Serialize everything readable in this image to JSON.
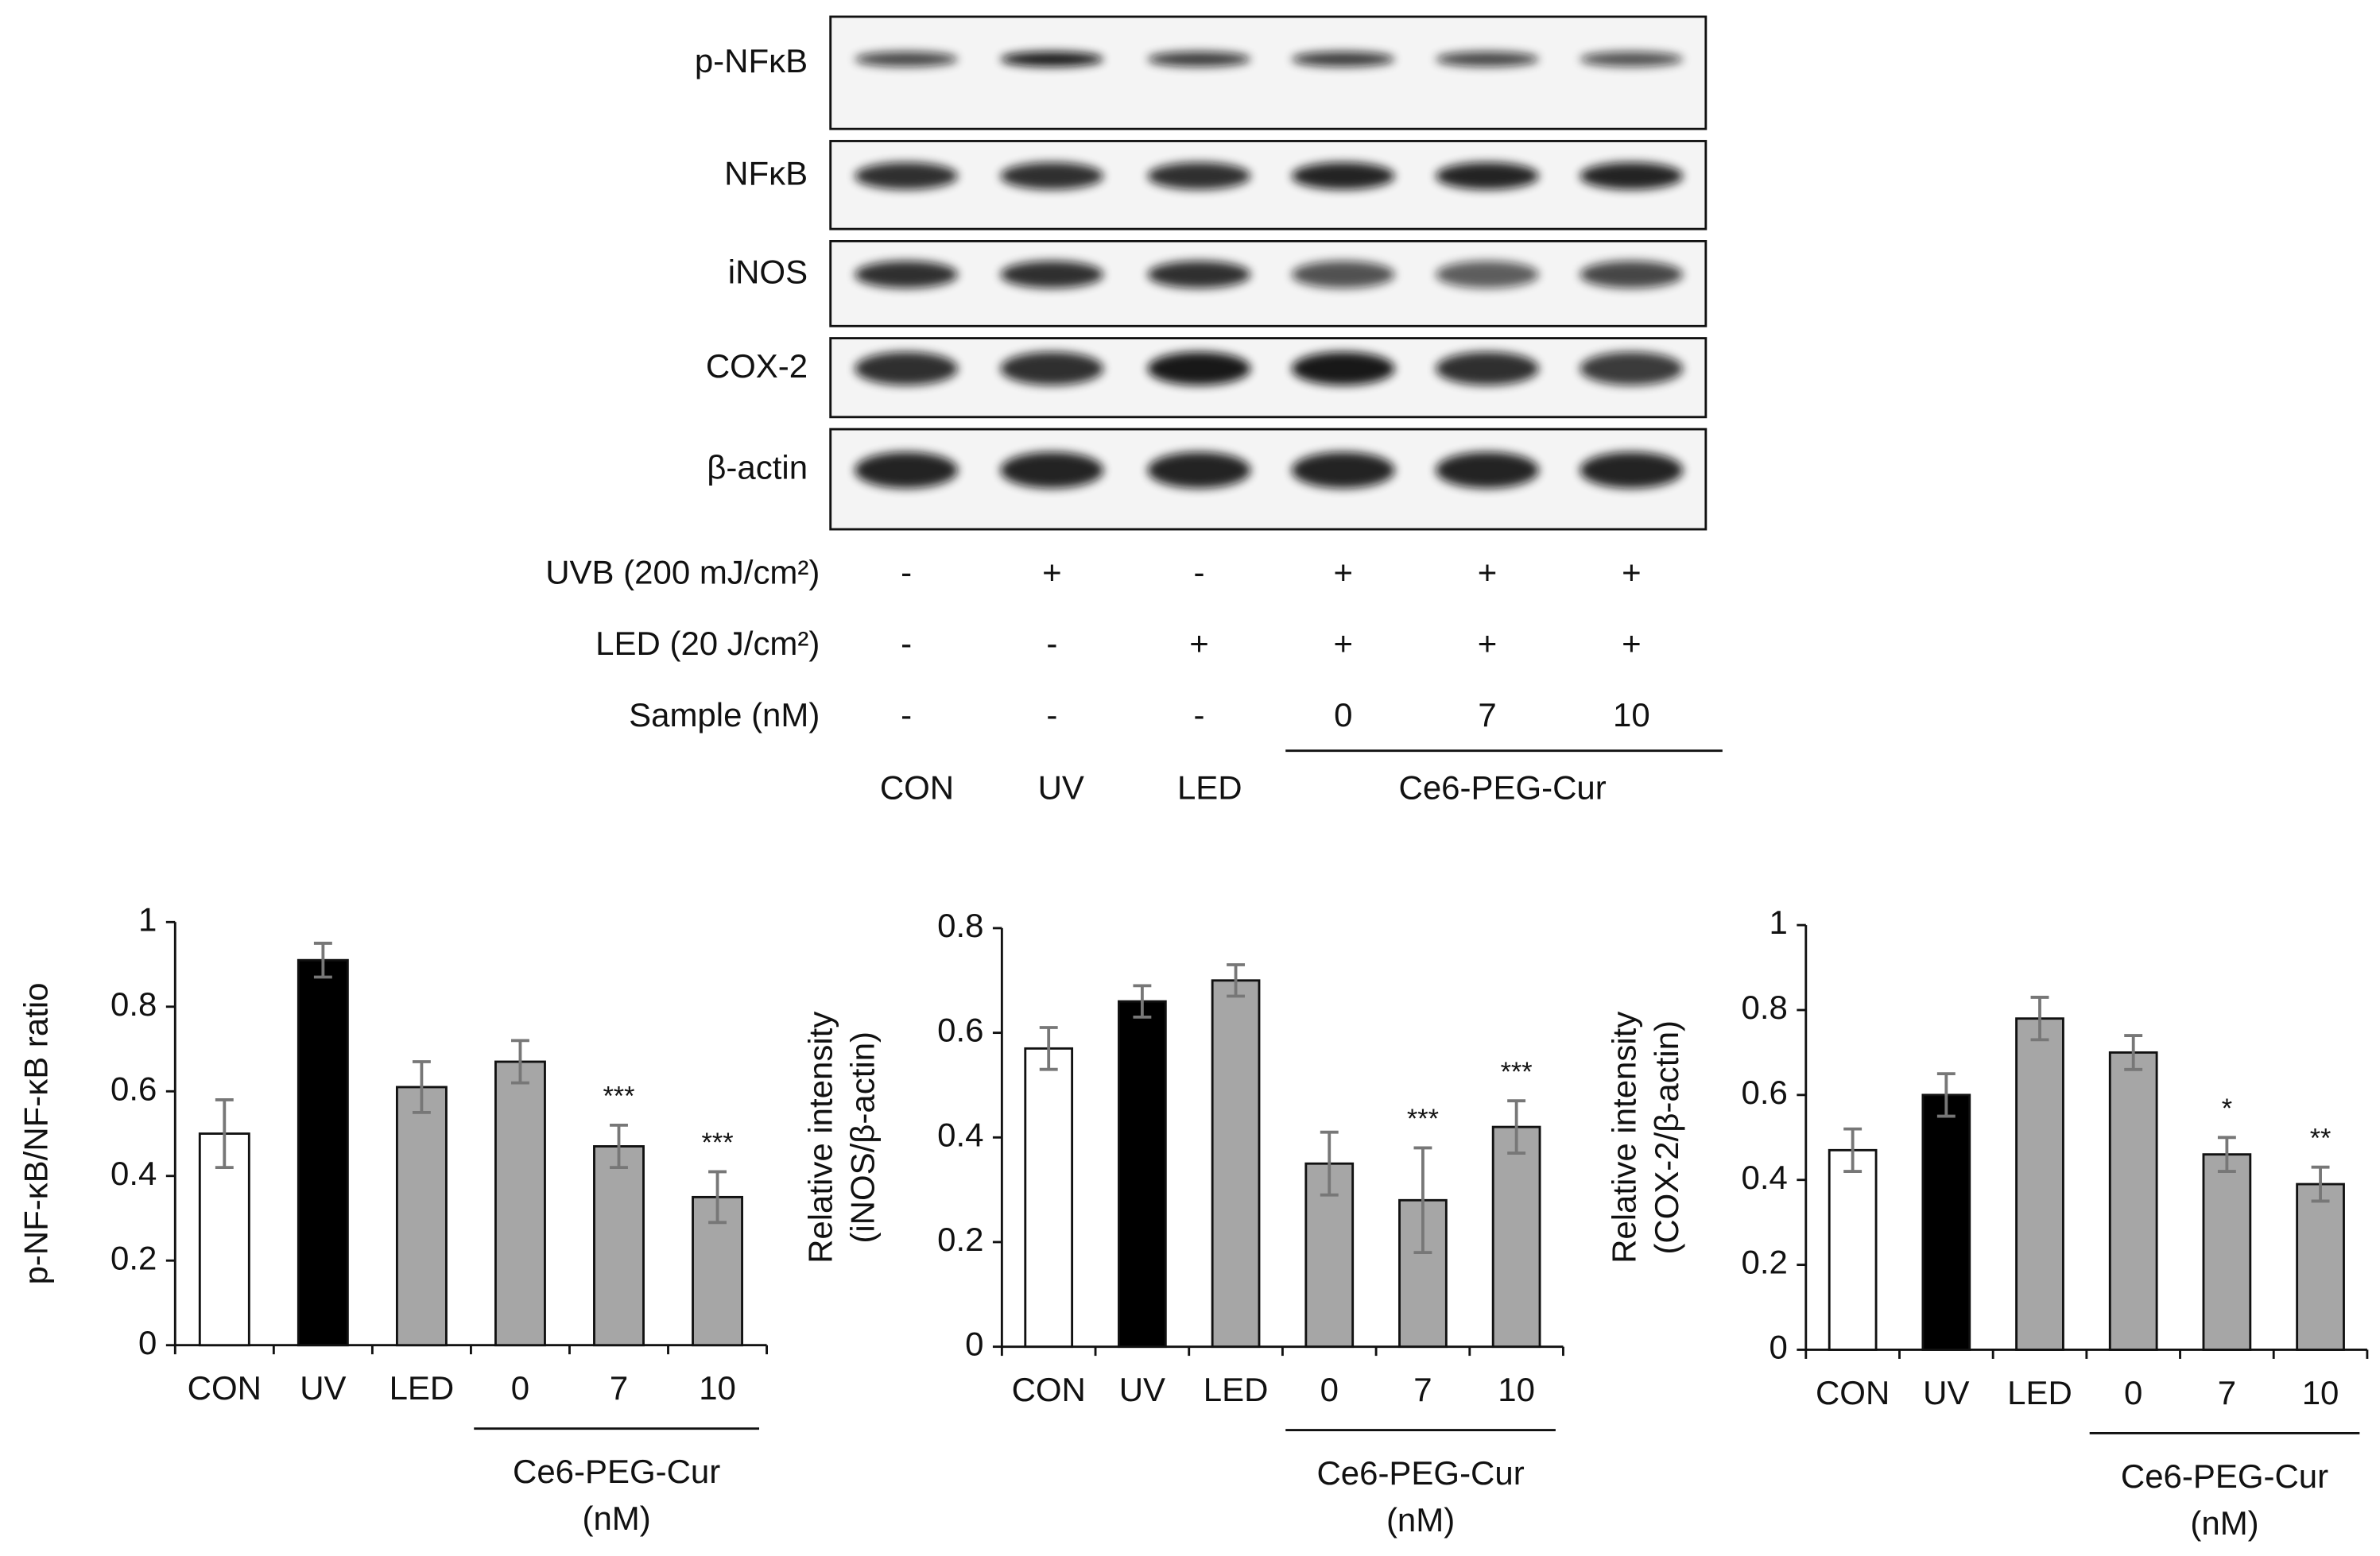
{
  "blot": {
    "rows": [
      "p-NFκB",
      "NFκB",
      "iNOS",
      "COX-2",
      "β-actin"
    ],
    "treatments": [
      {
        "label": "UVB (200 mJ/cm²)",
        "values": [
          "-",
          "+",
          "-",
          "+",
          "+",
          "+"
        ]
      },
      {
        "label": "LED (20 J/cm²)",
        "values": [
          "-",
          "-",
          "+",
          "+",
          "+",
          "+"
        ]
      },
      {
        "label": "Sample (nM)",
        "values": [
          "-",
          "-",
          "-",
          "0",
          "7",
          "10"
        ]
      }
    ],
    "groups": [
      "CON",
      "UV",
      "LED",
      "Ce6-PEG-Cur"
    ]
  },
  "chart_data": [
    {
      "type": "bar",
      "y_label": [
        "p-NF-κB/NF-κB ratio"
      ],
      "categories": [
        "CON",
        "UV",
        "LED",
        "0",
        "7",
        "10"
      ],
      "values": [
        0.5,
        0.91,
        0.61,
        0.67,
        0.47,
        0.35
      ],
      "errors": [
        0.08,
        0.04,
        0.06,
        0.05,
        0.05,
        0.06
      ],
      "annotations": [
        null,
        null,
        null,
        null,
        "***",
        "***"
      ],
      "colors": [
        "#ffffff",
        "#000000",
        "#a6a6a6",
        "#a6a6a6",
        "#a6a6a6",
        "#a6a6a6"
      ],
      "group_label": [
        "Ce6-PEG-Cur",
        "(nM)"
      ],
      "ylim": [
        0,
        1
      ],
      "yticks": [
        0,
        0.2,
        0.4,
        0.6,
        0.8,
        1
      ]
    },
    {
      "type": "bar",
      "y_label": [
        "Relative intensity",
        "(iNOS/β-actin)"
      ],
      "categories": [
        "CON",
        "UV",
        "LED",
        "0",
        "7",
        "10"
      ],
      "values": [
        0.57,
        0.66,
        0.7,
        0.35,
        0.28,
        0.42
      ],
      "errors": [
        0.04,
        0.03,
        0.03,
        0.06,
        0.1,
        0.05
      ],
      "annotations": [
        null,
        null,
        null,
        null,
        "***",
        "***"
      ],
      "colors": [
        "#ffffff",
        "#000000",
        "#a6a6a6",
        "#a6a6a6",
        "#a6a6a6",
        "#a6a6a6"
      ],
      "group_label": [
        "Ce6-PEG-Cur",
        "(nM)"
      ],
      "ylim": [
        0,
        0.8
      ],
      "yticks": [
        0,
        0.2,
        0.4,
        0.6,
        0.8
      ]
    },
    {
      "type": "bar",
      "y_label": [
        "Relative intensity",
        "(COX-2/β-actin)"
      ],
      "categories": [
        "CON",
        "UV",
        "LED",
        "0",
        "7",
        "10"
      ],
      "values": [
        0.47,
        0.6,
        0.78,
        0.7,
        0.46,
        0.39
      ],
      "errors": [
        0.05,
        0.05,
        0.05,
        0.04,
        0.04,
        0.04
      ],
      "annotations": [
        null,
        null,
        null,
        null,
        "*",
        "**"
      ],
      "colors": [
        "#ffffff",
        "#000000",
        "#a6a6a6",
        "#a6a6a6",
        "#a6a6a6",
        "#a6a6a6"
      ],
      "group_label": [
        "Ce6-PEG-Cur",
        "(nM)"
      ],
      "ylim": [
        0,
        1
      ],
      "yticks": [
        0,
        0.2,
        0.4,
        0.6,
        0.8,
        1
      ]
    }
  ]
}
